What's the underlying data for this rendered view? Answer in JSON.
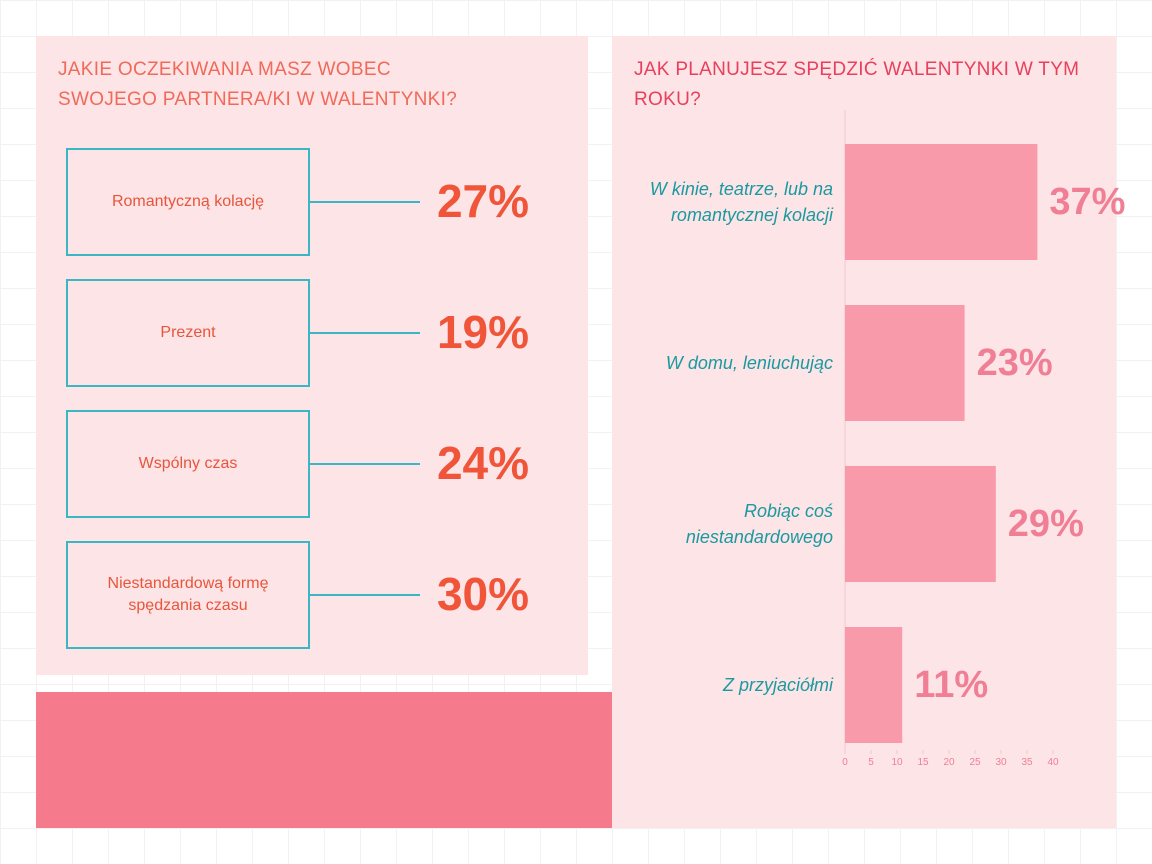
{
  "left": {
    "title": "JAKIE OCZEKIWANIA MASZ WOBEC SWOJEGO PARTNERA/KI W WALENTYNKI?",
    "items": [
      {
        "label": "Romantyczną kolację",
        "value": "27%"
      },
      {
        "label": "Prezent",
        "value": "19%"
      },
      {
        "label": "Wspólny czas",
        "value": "24%"
      },
      {
        "label": "Niestandardową formę spędzania czasu",
        "value": "30%"
      }
    ]
  },
  "chart_data": {
    "type": "hbar",
    "title": "JAK PLANUJESZ SPĘDZIĆ WALENTYNKI W TYM ROKU?",
    "categories": [
      "W kinie, teatrze, lub na romantycznej kolacji",
      "W domu, leniuchując",
      "Robiąc coś niestandardowego",
      "Z przyjaciółmi"
    ],
    "values": [
      37,
      23,
      29,
      11
    ],
    "value_labels": [
      "37%",
      "23%",
      "29%",
      "11%"
    ],
    "color": "#f99aab",
    "xlim": [
      0,
      40
    ],
    "xticks": [
      0,
      5,
      10,
      15,
      20,
      25,
      30,
      35,
      40
    ]
  }
}
